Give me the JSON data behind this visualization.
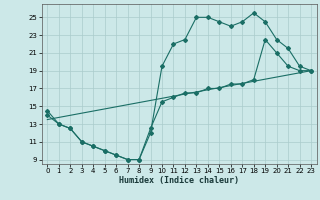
{
  "bg_color": "#cce8e8",
  "grid_color": "#aacccc",
  "line_color": "#1a6e65",
  "xlabel": "Humidex (Indice chaleur)",
  "xlim": [
    -0.5,
    23.5
  ],
  "ylim": [
    8.5,
    26.5
  ],
  "xticks": [
    0,
    1,
    2,
    3,
    4,
    5,
    6,
    7,
    8,
    9,
    10,
    11,
    12,
    13,
    14,
    15,
    16,
    17,
    18,
    19,
    20,
    21,
    22,
    23
  ],
  "yticks": [
    9,
    11,
    13,
    15,
    17,
    19,
    21,
    23,
    25
  ],
  "series1_x": [
    0,
    1,
    2,
    3,
    4,
    5,
    6,
    7,
    8,
    9,
    10,
    11,
    12,
    13,
    14,
    15,
    16,
    17,
    18,
    19,
    20,
    21,
    22,
    23
  ],
  "series1_y": [
    14.5,
    13.0,
    12.5,
    11.0,
    10.5,
    10.0,
    9.5,
    9.0,
    9.0,
    12.0,
    19.5,
    22.0,
    22.5,
    25.0,
    25.0,
    24.5,
    24.0,
    24.5,
    25.5,
    24.5,
    22.5,
    21.5,
    19.5,
    19.0
  ],
  "series2_x": [
    0,
    1,
    2,
    3,
    4,
    5,
    6,
    7,
    8,
    9,
    10,
    11,
    12,
    13,
    14,
    15,
    16,
    17,
    18,
    19,
    20,
    21,
    22,
    23
  ],
  "series2_y": [
    14.0,
    13.0,
    12.5,
    11.0,
    10.5,
    10.0,
    9.5,
    9.0,
    9.0,
    12.5,
    15.5,
    16.0,
    16.5,
    16.5,
    17.0,
    17.0,
    17.5,
    17.5,
    18.0,
    22.5,
    21.0,
    19.5,
    19.0,
    19.0
  ],
  "series3_x": [
    0,
    23
  ],
  "series3_y": [
    13.5,
    19.0
  ],
  "marker": "D",
  "marker_size": 2.0,
  "linewidth": 0.8
}
